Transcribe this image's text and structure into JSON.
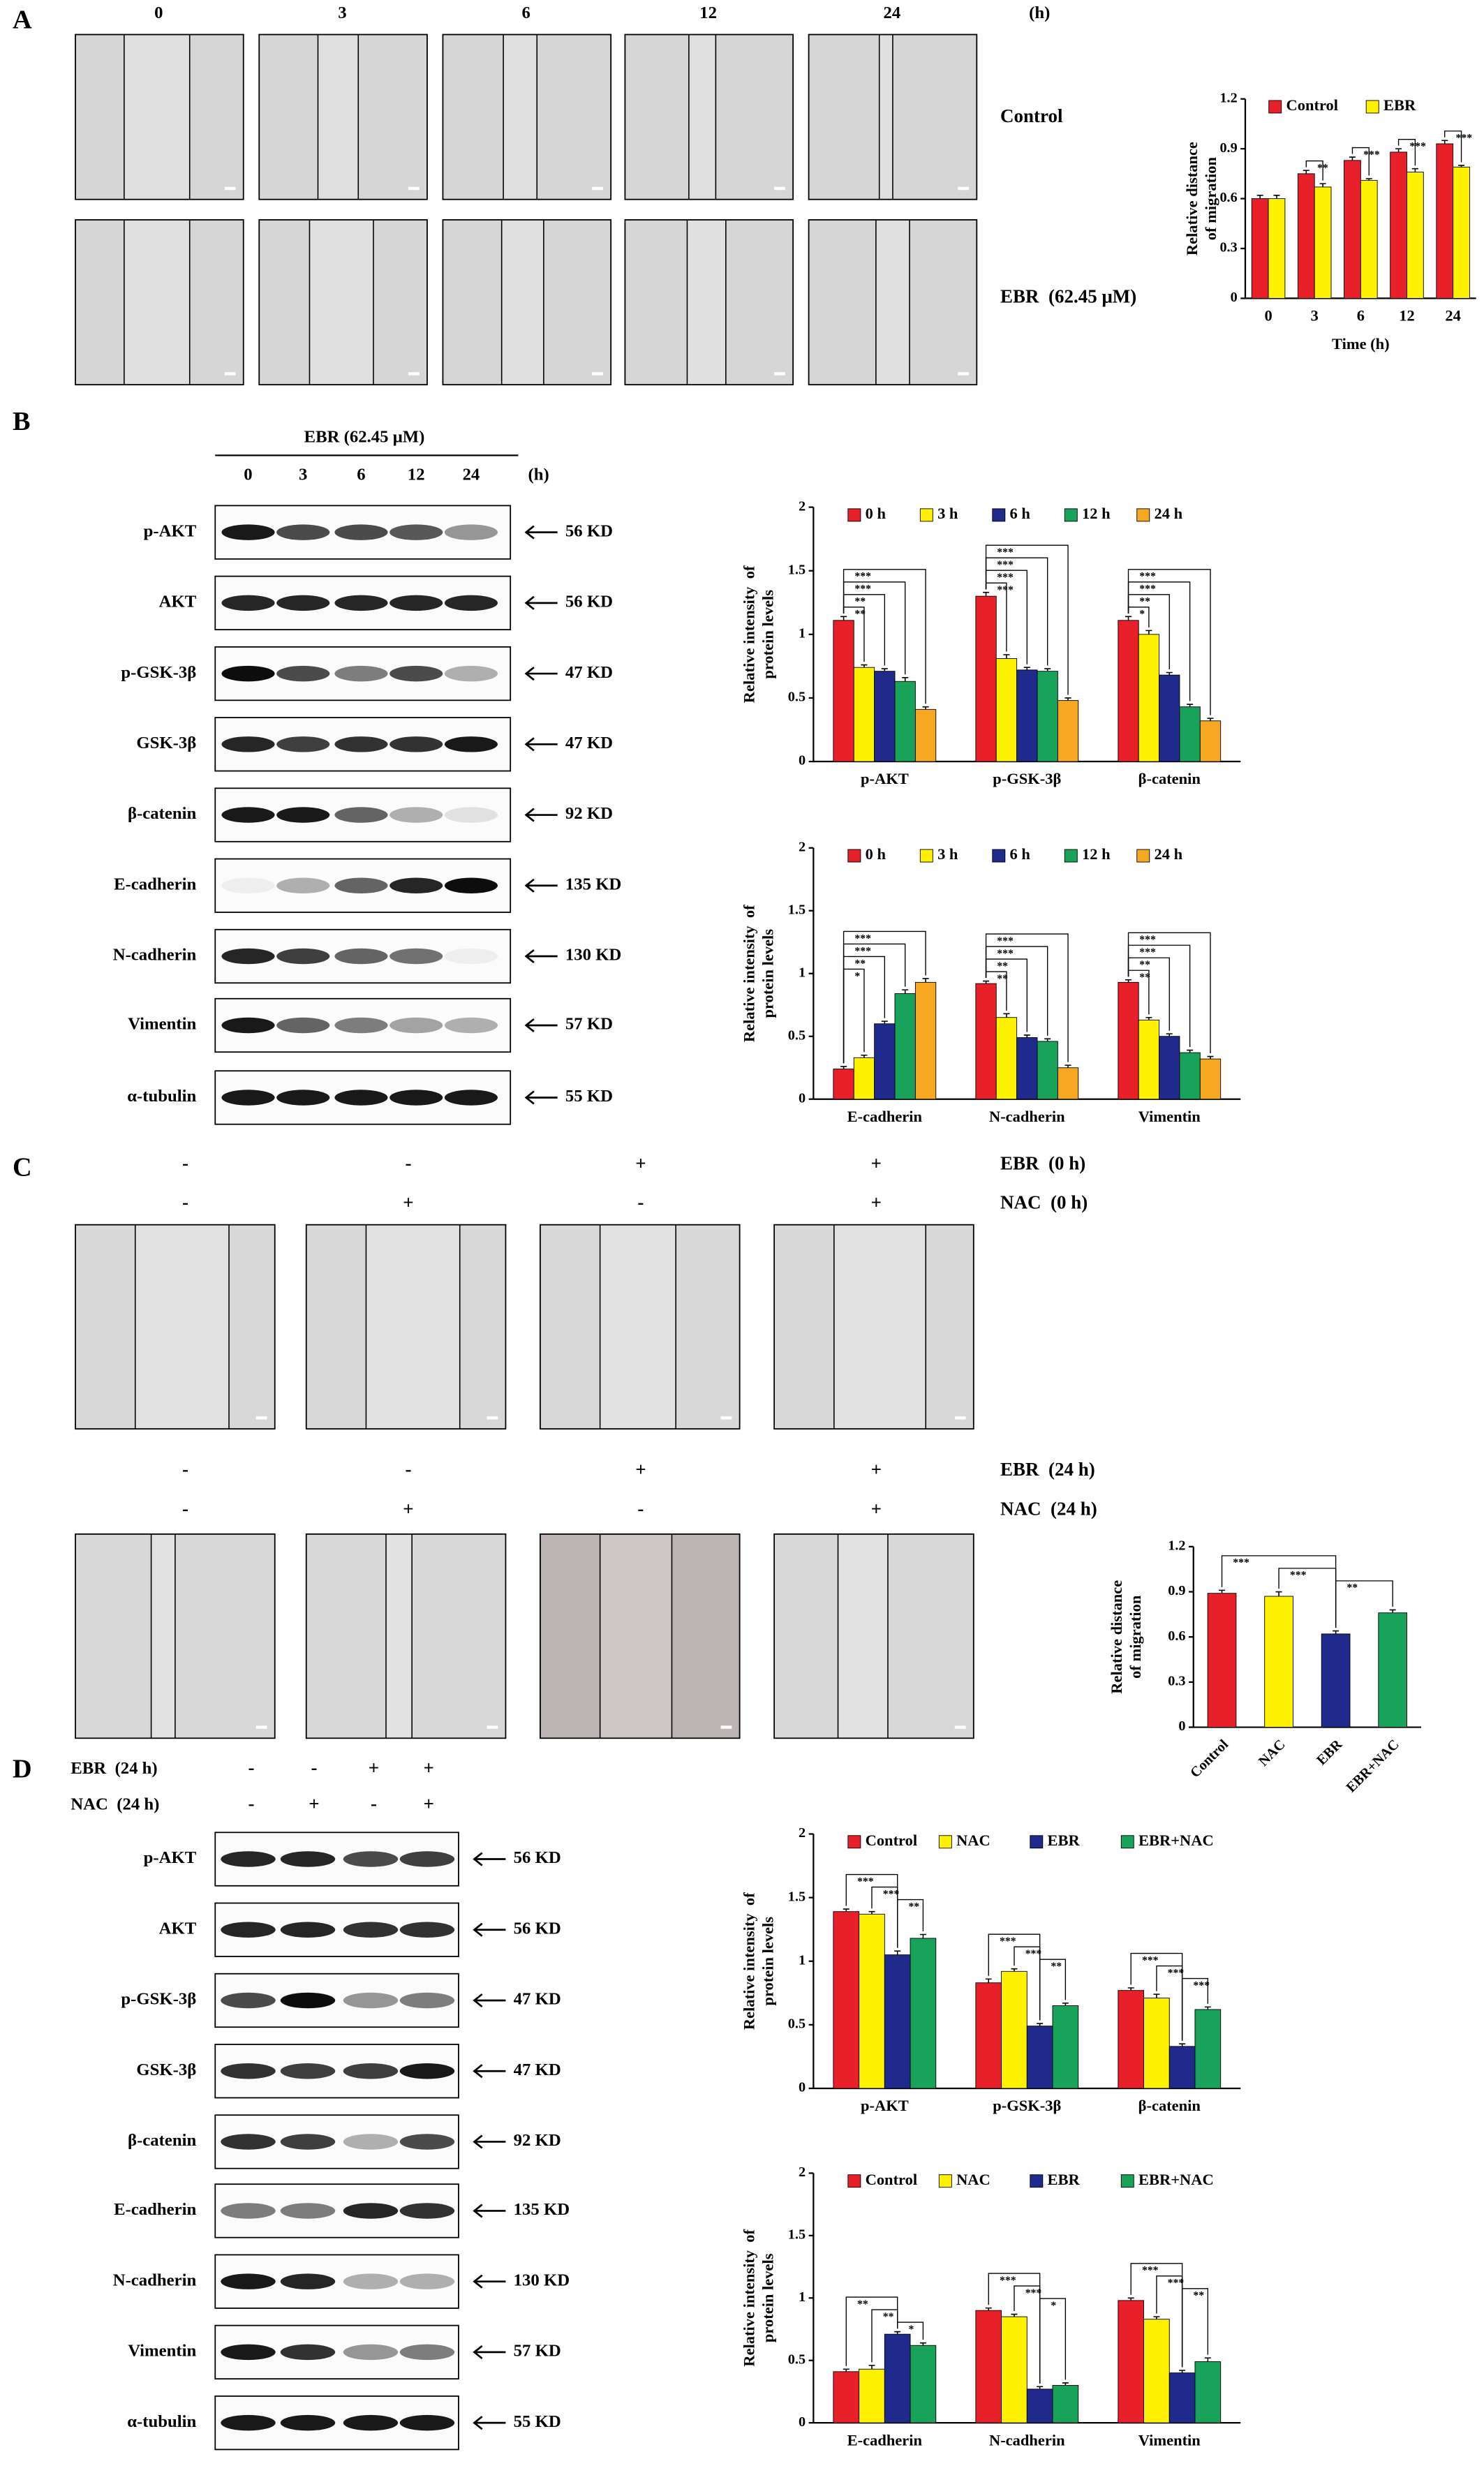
{
  "panel_a": {
    "label": "A",
    "times": [
      "0",
      "3",
      "6",
      "12",
      "24"
    ],
    "unit": "(h)",
    "rows": [
      "Control",
      "EBR  (62.45 μM)"
    ]
  },
  "panel_b": {
    "label": "B",
    "treatment": "EBR (62.45 μM)",
    "lanes": [
      "0",
      "3",
      "6",
      "12",
      "24"
    ],
    "unit": "(h)",
    "blots": [
      {
        "protein": "p-AKT",
        "size": "56 KD"
      },
      {
        "protein": "AKT",
        "size": "56 KD"
      },
      {
        "protein": "p-GSK-3β",
        "size": "47 KD"
      },
      {
        "protein": "GSK-3β",
        "size": "47 KD"
      },
      {
        "protein": "β-catenin",
        "size": "92 KD"
      },
      {
        "protein": "E-cadherin",
        "size": "135 KD"
      },
      {
        "protein": "N-cadherin",
        "size": "130 KD"
      },
      {
        "protein": "Vimentin",
        "size": "57 KD"
      },
      {
        "protein": "α-tubulin",
        "size": "55 KD"
      }
    ]
  },
  "panel_c": {
    "label": "C",
    "conditions_0h": [
      {
        "name": "EBR  (0 h)",
        "signs": [
          "-",
          "-",
          "+",
          "+"
        ]
      },
      {
        "name": "NAC  (0 h)",
        "signs": [
          "-",
          "+",
          "-",
          "+"
        ]
      }
    ],
    "conditions_24h": [
      {
        "name": "EBR  (24 h)",
        "signs": [
          "-",
          "-",
          "+",
          "+"
        ]
      },
      {
        "name": "NAC  (24 h)",
        "signs": [
          "-",
          "+",
          "-",
          "+"
        ]
      }
    ]
  },
  "panel_d": {
    "label": "D",
    "conditions": [
      {
        "name": "EBR  (24 h)",
        "signs": [
          "-",
          "-",
          "+",
          "+"
        ]
      },
      {
        "name": "NAC  (24 h)",
        "signs": [
          "-",
          "+",
          "-",
          "+"
        ]
      }
    ],
    "blots": [
      {
        "protein": "p-AKT",
        "size": "56 KD"
      },
      {
        "protein": "AKT",
        "size": "56 KD"
      },
      {
        "protein": "p-GSK-3β",
        "size": "47 KD"
      },
      {
        "protein": "GSK-3β",
        "size": "47 KD"
      },
      {
        "protein": "β-catenin",
        "size": "92 KD"
      },
      {
        "protein": "E-cadherin",
        "size": "135 KD"
      },
      {
        "protein": "N-cadherin",
        "size": "130 KD"
      },
      {
        "protein": "Vimentin",
        "size": "57 KD"
      },
      {
        "protein": "α-tubulin",
        "size": "55 KD"
      }
    ]
  },
  "chart_data": [
    {
      "type": "bar",
      "ylabel": [
        "Relative distance",
        "of migration"
      ],
      "xlabel": "Time (h)",
      "categories": [
        "0",
        "3",
        "6",
        "12",
        "24"
      ],
      "ylim": [
        0,
        1.2
      ],
      "yticks": [
        0,
        0.3,
        0.6,
        0.9,
        1.2
      ],
      "series": [
        {
          "name": "Control",
          "color": "#e8202a",
          "values": [
            0.6,
            0.75,
            0.83,
            0.88,
            0.93
          ],
          "errors": [
            0.02,
            0.02,
            0.02,
            0.02,
            0.02
          ]
        },
        {
          "name": "EBR",
          "color": "#fff200",
          "values": [
            0.6,
            0.67,
            0.71,
            0.76,
            0.79
          ],
          "errors": [
            0.02,
            0.02,
            0.01,
            0.02,
            0.01
          ]
        }
      ],
      "significance": [
        null,
        "**",
        "***",
        "***",
        "***"
      ]
    },
    {
      "type": "bar",
      "ylabel": [
        "Relative intensity  of",
        "protein levels"
      ],
      "categories": [
        "p-AKT",
        "p-GSK-3β",
        "β-catenin"
      ],
      "ylim": [
        0,
        2
      ],
      "yticks": [
        0,
        0.5,
        1,
        1.5,
        2
      ],
      "series": [
        {
          "name": "0 h",
          "color": "#e8202a",
          "values": [
            1.11,
            1.3,
            1.11
          ],
          "errors": [
            0.03,
            0.03,
            0.03
          ]
        },
        {
          "name": "3 h",
          "color": "#fff200",
          "values": [
            0.74,
            0.81,
            1.0
          ],
          "errors": [
            0.02,
            0.03,
            0.03
          ]
        },
        {
          "name": "6 h",
          "color": "#1f2a8c",
          "values": [
            0.71,
            0.72,
            0.68
          ],
          "errors": [
            0.02,
            0.02,
            0.02
          ]
        },
        {
          "name": "12 h",
          "color": "#19a35a",
          "values": [
            0.63,
            0.71,
            0.43
          ],
          "errors": [
            0.03,
            0.02,
            0.02
          ]
        },
        {
          "name": "24 h",
          "color": "#f7a823",
          "values": [
            0.41,
            0.48,
            0.32
          ],
          "errors": [
            0.02,
            0.02,
            0.02
          ]
        }
      ],
      "significance": [
        [
          "**",
          "**",
          "***",
          "***"
        ],
        [
          "***",
          "***",
          "***",
          "***"
        ],
        [
          "*",
          "**",
          "***",
          "***"
        ]
      ]
    },
    {
      "type": "bar",
      "ylabel": [
        "Relative intensity  of",
        "protein levels"
      ],
      "categories": [
        "E-cadherin",
        "N-cadherin",
        "Vimentin"
      ],
      "ylim": [
        0,
        2
      ],
      "yticks": [
        0,
        0.5,
        1,
        1.5,
        2
      ],
      "series": [
        {
          "name": "0 h",
          "color": "#e8202a",
          "values": [
            0.24,
            0.92,
            0.93
          ],
          "errors": [
            0.02,
            0.02,
            0.02
          ]
        },
        {
          "name": "3 h",
          "color": "#fff200",
          "values": [
            0.33,
            0.65,
            0.63
          ],
          "errors": [
            0.02,
            0.03,
            0.02
          ]
        },
        {
          "name": "6 h",
          "color": "#1f2a8c",
          "values": [
            0.6,
            0.49,
            0.5
          ],
          "errors": [
            0.02,
            0.02,
            0.02
          ]
        },
        {
          "name": "12 h",
          "color": "#19a35a",
          "values": [
            0.84,
            0.46,
            0.37
          ],
          "errors": [
            0.03,
            0.02,
            0.02
          ]
        },
        {
          "name": "24 h",
          "color": "#f7a823",
          "values": [
            0.93,
            0.25,
            0.32
          ],
          "errors": [
            0.03,
            0.02,
            0.02
          ]
        }
      ],
      "significance": [
        [
          "*",
          "**",
          "***",
          "***"
        ],
        [
          "**",
          "**",
          "***",
          "***"
        ],
        [
          "**",
          "**",
          "***",
          "***"
        ]
      ]
    },
    {
      "type": "bar",
      "ylabel": [
        "Relative distance",
        "of migration"
      ],
      "categories": [
        "Control",
        "NAC",
        "EBR",
        "EBR+NAC"
      ],
      "ylim": [
        0,
        1.2
      ],
      "yticks": [
        0,
        0.3,
        0.6,
        0.9,
        1.2
      ],
      "values": [
        0.89,
        0.87,
        0.62,
        0.76
      ],
      "errors": [
        0.02,
        0.03,
        0.02,
        0.02
      ],
      "colors": [
        "#e8202a",
        "#fff200",
        "#1f2a8c",
        "#19a35a"
      ],
      "significance": [
        "***",
        "***",
        "**"
      ]
    },
    {
      "type": "bar",
      "ylabel": [
        "Relative intensity  of",
        "protein levels"
      ],
      "categories": [
        "p-AKT",
        "p-GSK-3β",
        "β-catenin"
      ],
      "ylim": [
        0,
        2
      ],
      "yticks": [
        0,
        0.5,
        1,
        1.5,
        2
      ],
      "series": [
        {
          "name": "Control",
          "color": "#e8202a",
          "values": [
            1.39,
            0.83,
            0.77
          ],
          "errors": [
            0.02,
            0.03,
            0.02
          ]
        },
        {
          "name": "NAC",
          "color": "#fff200",
          "values": [
            1.37,
            0.92,
            0.71
          ],
          "errors": [
            0.02,
            0.02,
            0.03
          ]
        },
        {
          "name": "EBR",
          "color": "#1f2a8c",
          "values": [
            1.05,
            0.49,
            0.33
          ],
          "errors": [
            0.03,
            0.02,
            0.02
          ]
        },
        {
          "name": "EBR+NAC",
          "color": "#19a35a",
          "values": [
            1.18,
            0.65,
            0.62
          ],
          "errors": [
            0.03,
            0.02,
            0.02
          ]
        }
      ],
      "significance": [
        [
          "***",
          "***",
          "**"
        ],
        [
          "***",
          "***",
          "**"
        ],
        [
          "***",
          "***",
          "***"
        ]
      ]
    },
    {
      "type": "bar",
      "ylabel": [
        "Relative intensity  of",
        "protein levels"
      ],
      "categories": [
        "E-cadherin",
        "N-cadherin",
        "Vimentin"
      ],
      "ylim": [
        0,
        2
      ],
      "yticks": [
        0,
        0.5,
        1,
        1.5,
        2
      ],
      "series": [
        {
          "name": "Control",
          "color": "#e8202a",
          "values": [
            0.41,
            0.9,
            0.98
          ],
          "errors": [
            0.02,
            0.02,
            0.02
          ]
        },
        {
          "name": "NAC",
          "color": "#fff200",
          "values": [
            0.43,
            0.85,
            0.83
          ],
          "errors": [
            0.03,
            0.02,
            0.02
          ]
        },
        {
          "name": "EBR",
          "color": "#1f2a8c",
          "values": [
            0.71,
            0.27,
            0.4
          ],
          "errors": [
            0.02,
            0.02,
            0.02
          ]
        },
        {
          "name": "EBR+NAC",
          "color": "#19a35a",
          "values": [
            0.62,
            0.3,
            0.49
          ],
          "errors": [
            0.02,
            0.02,
            0.03
          ]
        }
      ],
      "significance": [
        [
          "**",
          "**",
          "*"
        ],
        [
          "***",
          "***",
          "*"
        ],
        [
          "***",
          "***",
          "**"
        ]
      ]
    }
  ]
}
